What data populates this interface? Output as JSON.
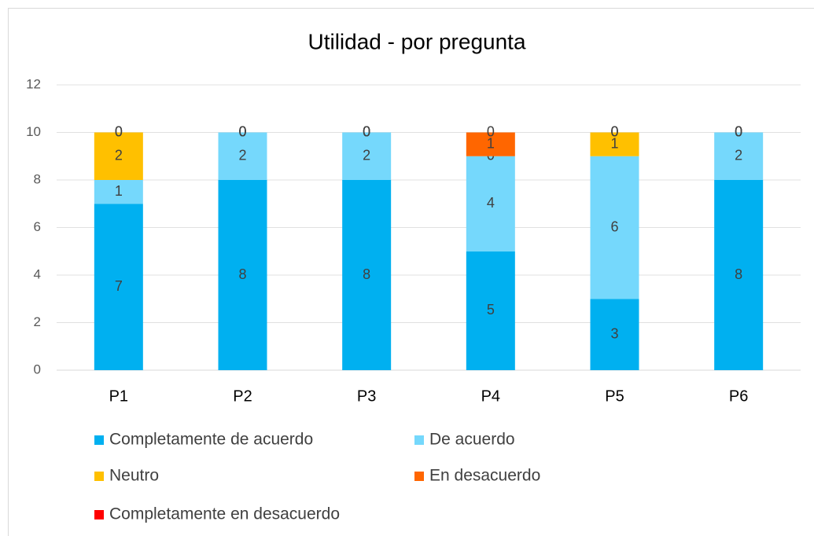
{
  "chart_data": {
    "type": "stacked_bar",
    "title": "Utilidad - por pregunta",
    "categories": [
      "P1",
      "P2",
      "P3",
      "P4",
      "P5",
      "P6"
    ],
    "series": [
      {
        "name": "Completamente de acuerdo",
        "color": "#00b0f0",
        "values": [
          7,
          8,
          8,
          5,
          3,
          8
        ]
      },
      {
        "name": "De acuerdo",
        "color": "#75d8fc",
        "values": [
          1,
          2,
          2,
          4,
          6,
          2
        ]
      },
      {
        "name": "Neutro",
        "color": "#ffc000",
        "values": [
          2,
          0,
          0,
          0,
          1,
          0
        ]
      },
      {
        "name": "En desacuerdo",
        "color": "#ff6600",
        "values": [
          0,
          0,
          0,
          1,
          0,
          0
        ]
      },
      {
        "name": "Completamente en desacuerdo",
        "color": "#ff0000",
        "values": [
          0,
          0,
          0,
          0,
          0,
          0
        ]
      }
    ],
    "ylim": [
      0,
      12
    ],
    "yticks": [
      0,
      2,
      4,
      6,
      8,
      10,
      12
    ],
    "grid": true
  }
}
